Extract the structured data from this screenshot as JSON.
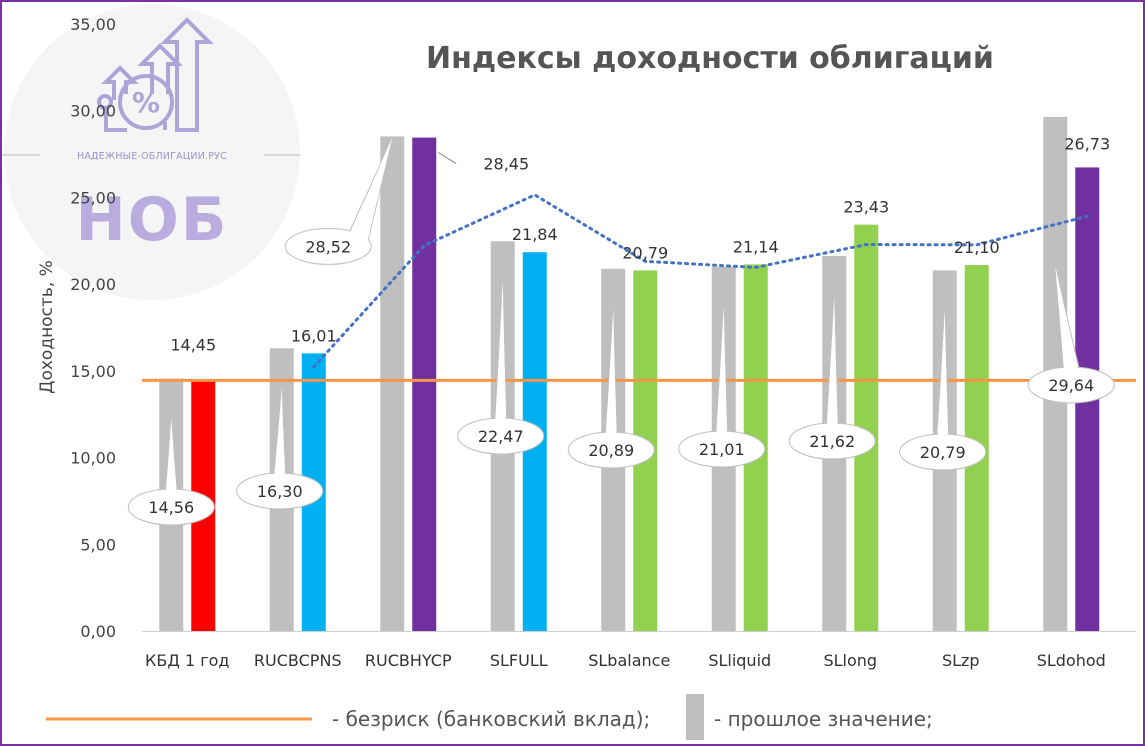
{
  "chart_data": {
    "type": "bar",
    "title": "Индексы доходности облигаций",
    "ylabel": "Доходность, %",
    "ylim": [
      0,
      35
    ],
    "yticks": [
      "0,00",
      "5,00",
      "10,00",
      "15,00",
      "20,00",
      "25,00",
      "30,00",
      "35,00"
    ],
    "categories": [
      "КБД 1 год",
      "RUCBCPNS",
      "RUCBHYCP",
      "SLFULL",
      "SLbalance",
      "SLliquid",
      "SLlong",
      "SLzp",
      "SLdohod"
    ],
    "series": [
      {
        "name": "прошлое значение",
        "values": [
          14.56,
          16.3,
          28.52,
          22.47,
          20.89,
          21.01,
          21.62,
          20.79,
          29.64
        ],
        "labels": [
          "14,56",
          "16,30",
          "28,52",
          "22,47",
          "20,89",
          "21,01",
          "21,62",
          "20,79",
          "29,64"
        ],
        "color": "#bfbfbf"
      },
      {
        "name": "",
        "values": [
          14.45,
          16.01,
          28.45,
          21.84,
          20.79,
          21.14,
          23.43,
          21.1,
          26.73
        ],
        "labels": [
          "14,45",
          "16,01",
          "28,45",
          "21,84",
          "20,79",
          "21,14",
          "23,43",
          "21,10",
          "26,73"
        ],
        "colors": [
          "#ff0000",
          "#00b0f0",
          "#7030a0",
          "#00b0f0",
          "#92d050",
          "#92d050",
          "#92d050",
          "#92d050",
          "#7030a0"
        ]
      }
    ],
    "risk_free": {
      "value": 14.45,
      "color": "#f79646"
    },
    "trendline": {
      "type": "moving-average",
      "color": "#4472c4"
    },
    "legend": [
      {
        "marker": "orange-line",
        "text": "- безриск (банковский вклад);"
      },
      {
        "marker": "gray-bar",
        "text": "- прошлое значение;"
      }
    ]
  },
  "watermark": {
    "site": "НАДЕЖНЫЕ-ОБЛИГАЦИИ.РУС",
    "brand": "НОБ",
    "percent": "%"
  }
}
